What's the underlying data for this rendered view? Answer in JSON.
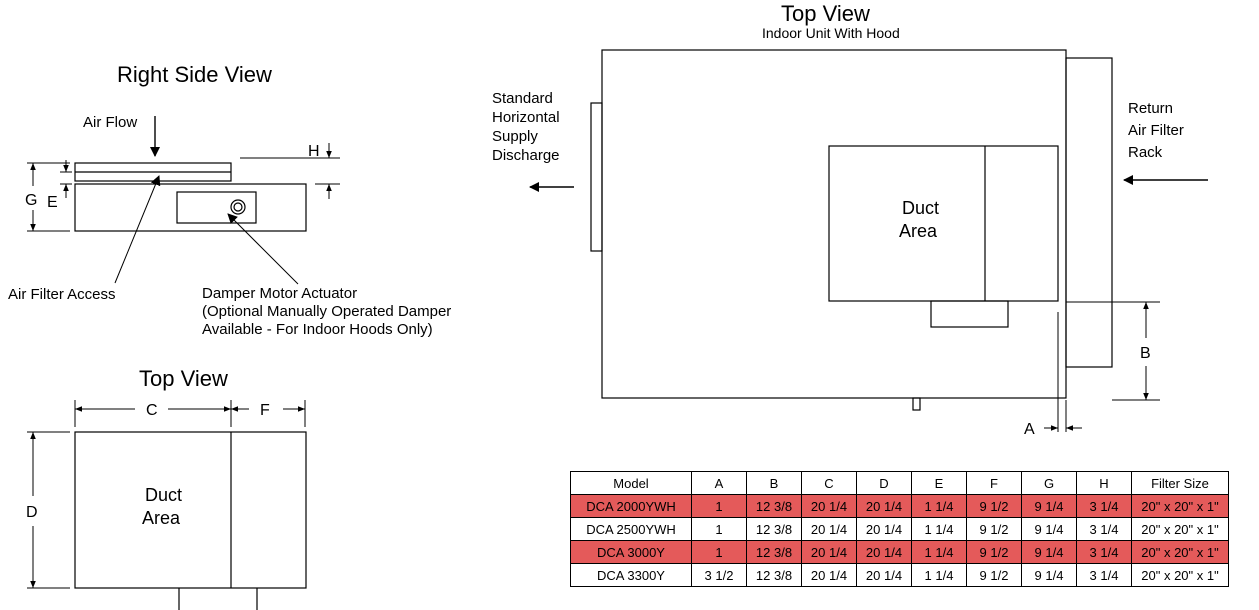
{
  "right_side_view": {
    "title": "Right  Side View",
    "air_flow": "Air Flow",
    "dim_h": "H",
    "dim_g": "G",
    "dim_e": "E",
    "air_filter_access": "Air Filter Access",
    "damper_line1": "Damper Motor Actuator",
    "damper_line2": "(Optional Manually Operated Damper",
    "damper_line3": "Available - For Indoor Hoods Only)"
  },
  "small_top_view": {
    "title": "Top View",
    "dim_c": "C",
    "dim_f": "F",
    "dim_d": "D",
    "duct_line1": "Duct",
    "duct_line2": "Area"
  },
  "main_top_view": {
    "title": "Top View",
    "subtitle": "Indoor Unit With Hood",
    "supply_line1": "Standard",
    "supply_line2": "Horizontal",
    "supply_line3": "Supply",
    "supply_line4": "Discharge",
    "return_line1": "Return",
    "return_line2": "Air Filter",
    "return_line3": "Rack",
    "duct_line1": "Duct",
    "duct_line2": "Area",
    "dim_b": "B",
    "dim_a": "A"
  },
  "table": {
    "headers": [
      "Model",
      "A",
      "B",
      "C",
      "D",
      "E",
      "F",
      "G",
      "H",
      "Filter Size"
    ],
    "highlight_color": "#e45a5a",
    "rows": [
      {
        "highlight": true,
        "cells": [
          "DCA 2000YWH",
          "1",
          "12 3/8",
          "20 1/4",
          "20 1/4",
          "1 1/4",
          "9 1/2",
          "9 1/4",
          "3 1/4",
          "20\" x 20\" x 1\""
        ]
      },
      {
        "highlight": false,
        "cells": [
          "DCA 2500YWH",
          "1",
          "12 3/8",
          "20 1/4",
          "20 1/4",
          "1 1/4",
          "9 1/2",
          "9 1/4",
          "3 1/4",
          "20\" x 20\" x 1\""
        ]
      },
      {
        "highlight": true,
        "cells": [
          "DCA 3000Y",
          "1",
          "12 3/8",
          "20 1/4",
          "20 1/4",
          "1 1/4",
          "9 1/2",
          "9 1/4",
          "3 1/4",
          "20\" x 20\" x 1\""
        ]
      },
      {
        "highlight": false,
        "cells": [
          "DCA 3300Y",
          "3 1/2",
          "12 3/8",
          "20 1/4",
          "20 1/4",
          "1 1/4",
          "9 1/2",
          "9 1/4",
          "3 1/4",
          "20\" x 20\" x 1\""
        ]
      }
    ]
  }
}
